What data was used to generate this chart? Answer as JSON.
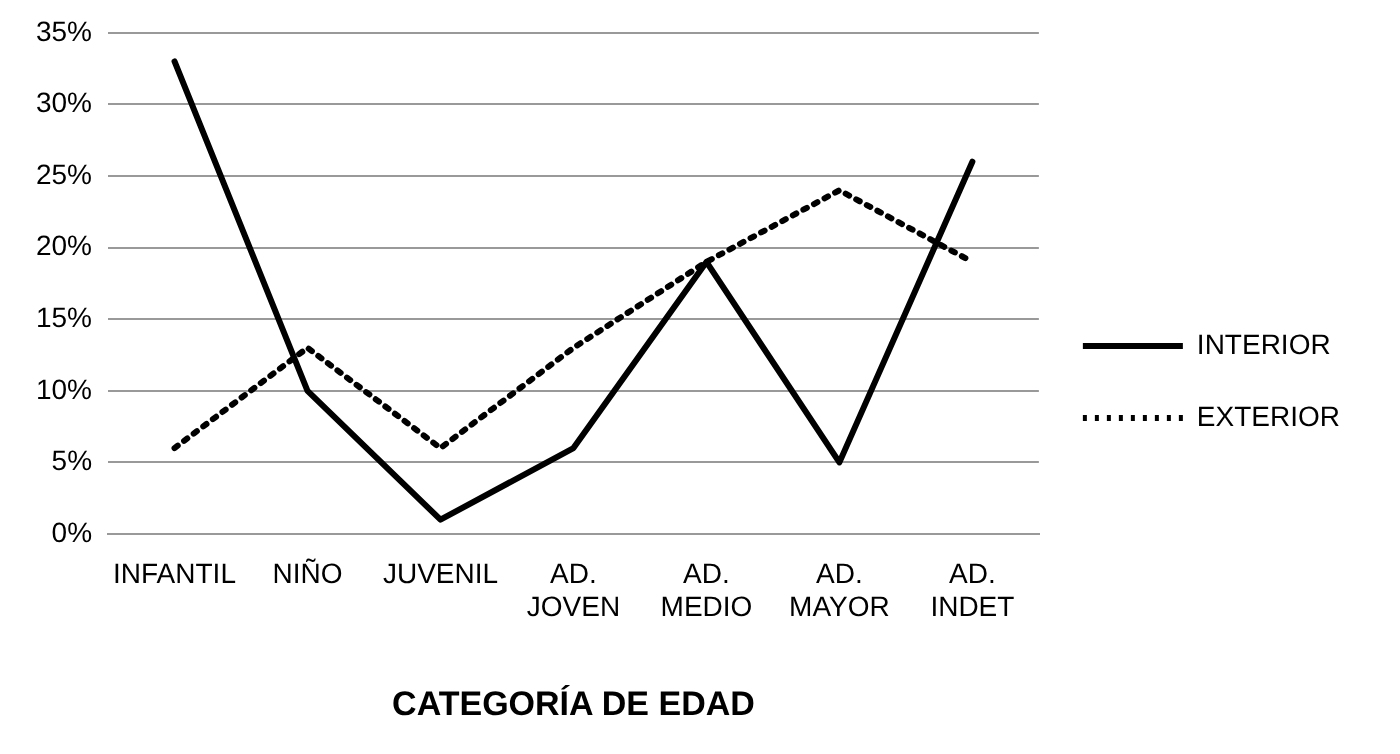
{
  "chart_data": {
    "type": "line",
    "xlabel": "CATEGORÍA DE EDAD",
    "categories": [
      "INFANTIL",
      "NIÑO",
      "JUVENIL",
      "AD. JOVEN",
      "AD. MEDIO",
      "AD. MAYOR",
      "AD. INDET"
    ],
    "series": [
      {
        "name": "INTERIOR",
        "color": "#000000",
        "line_style": "solid",
        "values": [
          33,
          10,
          1,
          6,
          19,
          5,
          26
        ]
      },
      {
        "name": "EXTERIOR",
        "color": "#000000",
        "line_style": "dotted",
        "values": [
          6,
          13,
          6,
          13,
          19,
          24,
          19
        ]
      }
    ],
    "ylim": [
      0,
      35
    ],
    "yticks": [
      {
        "value": 0,
        "label": "0%"
      },
      {
        "value": 5,
        "label": "5%"
      },
      {
        "value": 10,
        "label": "10%"
      },
      {
        "value": 15,
        "label": "15%"
      },
      {
        "value": 20,
        "label": "20%"
      },
      {
        "value": 25,
        "label": "25%"
      },
      {
        "value": 30,
        "label": "30%"
      },
      {
        "value": 35,
        "label": "35%"
      }
    ],
    "grid": "y",
    "legend": "right",
    "marker": "none"
  }
}
